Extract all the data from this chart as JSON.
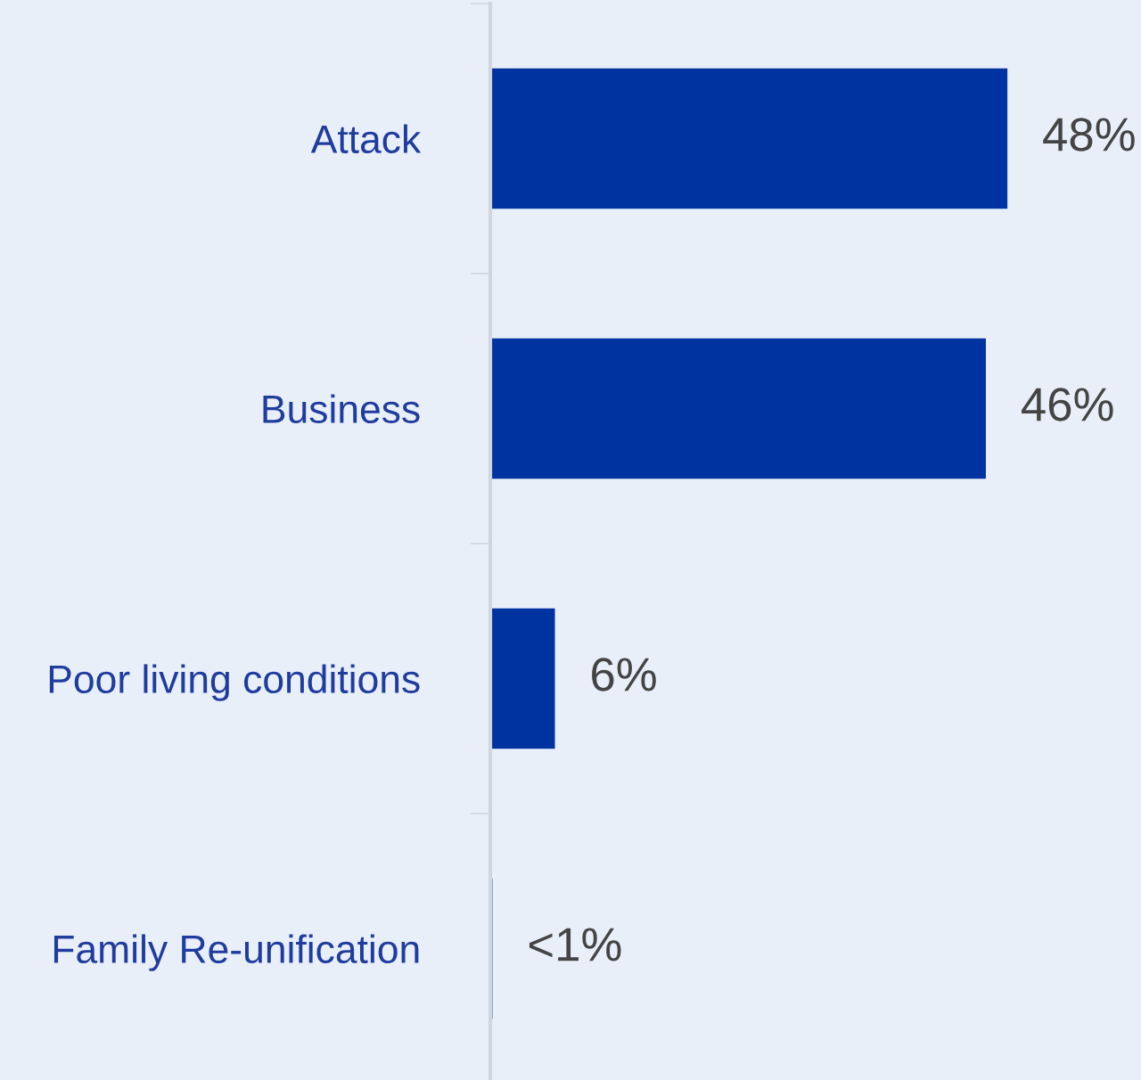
{
  "chart_data": {
    "type": "bar",
    "orientation": "horizontal",
    "categories": [
      "Attack",
      "Business",
      "Poor living conditions",
      "Family Re-unification"
    ],
    "values": [
      48,
      46,
      6,
      0.2
    ],
    "value_labels": [
      "48%",
      "46%",
      "6%",
      "<1%"
    ],
    "color": "#0033a0",
    "xlim": [
      0,
      60.4
    ],
    "grid": false,
    "legend": false,
    "tick_labels": "y"
  }
}
